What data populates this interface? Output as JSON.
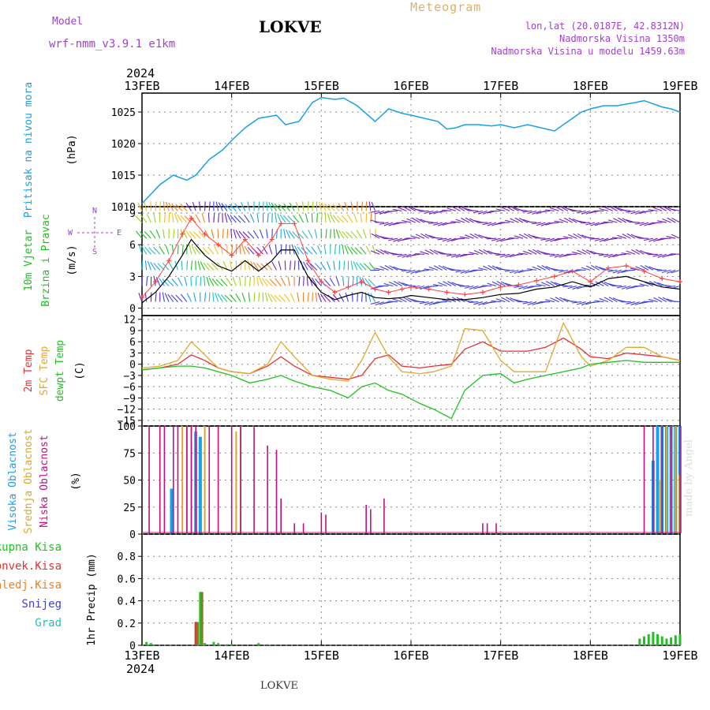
{
  "header": {
    "title": "LOKVE",
    "model_label": "Model",
    "model_name": "wrf-nmm_v3.9.1 e1km",
    "meteogram_label": "Meteogram",
    "lonlat": "lon,lat (20.0187E, 42.8312N)",
    "elevation": "Nadmorska Visina 1350m",
    "elevation_model": "Nadmorska Visina u modelu 1459.63m"
  },
  "footer": {
    "title": "LOKVE",
    "signature": "made by Angel"
  },
  "time_axis": {
    "year": "2024",
    "ticks": [
      "13FEB",
      "14FEB",
      "15FEB",
      "16FEB",
      "17FEB",
      "18FEB",
      "19FEB"
    ]
  },
  "colors": {
    "pressure": "#1aa0e8",
    "temp2m": "#e83030",
    "sfctemp": "#e0a830",
    "dewpt": "#20c020",
    "high_cloud": "#1aa0e8",
    "mid_cloud": "#d8a830",
    "low_cloud": "#c01080",
    "total_precip": "#20c020",
    "conv_precip": "#e83030",
    "freezing_precip": "#f08020",
    "snow": "#4040e0",
    "graupel": "#20c0c0",
    "gust": "#ff4040",
    "wind_speed": "#000000"
  },
  "chart_data": [
    {
      "type": "line",
      "panel": "pressure",
      "ylabel_left": "Pritisak na nivou mora",
      "ylabel_unit": "(hPa)",
      "ylim": [
        1010,
        1028
      ],
      "yticks": [
        "1010",
        "1015",
        "1020",
        "1025"
      ],
      "x_days": [
        0,
        0.1,
        0.2,
        0.35,
        0.5,
        0.6,
        0.75,
        0.9,
        1.0,
        1.15,
        1.3,
        1.5,
        1.6,
        1.75,
        1.9,
        2.0,
        2.15,
        2.25,
        2.4,
        2.6,
        2.75,
        2.9,
        3.0,
        3.15,
        3.3,
        3.4,
        3.5,
        3.6,
        3.75,
        3.9,
        4.0,
        4.15,
        4.3,
        4.45,
        4.6,
        4.75,
        4.9,
        5.0,
        5.15,
        5.3,
        5.5,
        5.6,
        5.8,
        5.9,
        6.0
      ],
      "series": [
        {
          "values": [
            1010.5,
            1012,
            1013.5,
            1015,
            1014.2,
            1015,
            1017.5,
            1019,
            1020.5,
            1022.5,
            1024,
            1024.5,
            1023,
            1023.5,
            1026.5,
            1027.3,
            1027,
            1027.2,
            1026,
            1023.5,
            1025.5,
            1024.8,
            1024.5,
            1024,
            1023.5,
            1022.3,
            1022.5,
            1023,
            1023,
            1022.8,
            1023,
            1022.5,
            1023,
            1022.5,
            1022,
            1023.5,
            1025,
            1025.5,
            1026,
            1026,
            1026.5,
            1026.8,
            1025.8,
            1025.5,
            1025
          ]
        }
      ]
    },
    {
      "type": "line",
      "panel": "wind",
      "ylabel_left_1": "10m Vjetar",
      "ylabel_left_2": "Brzina i Pravac",
      "ylabel_unit": "(m/s)",
      "compass": {
        "n": "N",
        "s": "S",
        "w": "W",
        "e": "E"
      },
      "ylim": [
        -0.7,
        9.6
      ],
      "yticks": [
        "0",
        "3",
        "6",
        "9"
      ],
      "x_days": [
        0,
        0.15,
        0.3,
        0.45,
        0.55,
        0.7,
        0.85,
        1.0,
        1.15,
        1.3,
        1.45,
        1.55,
        1.7,
        1.85,
        2.0,
        2.15,
        2.3,
        2.45,
        2.6,
        2.75,
        2.9,
        3.0,
        3.2,
        3.4,
        3.6,
        3.8,
        4.0,
        4.2,
        4.4,
        4.6,
        4.8,
        5.0,
        5.2,
        5.4,
        5.6,
        5.8,
        6.0
      ],
      "series": [
        {
          "name": "speed",
          "values": [
            0.5,
            1.5,
            3,
            5,
            6.5,
            5,
            4,
            3.5,
            4.5,
            3.5,
            4.5,
            5.5,
            5.5,
            3,
            1.5,
            0.8,
            1.2,
            1.5,
            1.0,
            0.9,
            1.0,
            1.2,
            1.0,
            0.8,
            0.8,
            1.0,
            1.3,
            1.4,
            1.8,
            2.0,
            2.5,
            2.0,
            2.8,
            3.0,
            2.5,
            2.0,
            1.8
          ]
        },
        {
          "name": "gust",
          "values": [
            1,
            2.5,
            4.5,
            7,
            8.5,
            7,
            6,
            5,
            6.5,
            5,
            6.5,
            8,
            8,
            4.5,
            2.5,
            1.5,
            2,
            2.5,
            1.8,
            1.5,
            1.8,
            2,
            1.8,
            1.5,
            1.3,
            1.5,
            2,
            2.2,
            2.6,
            3,
            3.5,
            2.5,
            3.8,
            4,
            3.5,
            2.8,
            2.5
          ]
        }
      ]
    },
    {
      "type": "line",
      "panel": "temperature",
      "ylabel_left_1": "2m Temp",
      "ylabel_left_2": "SFC Temp",
      "ylabel_left_3": "dewpt Temp",
      "ylabel_unit": "(C)",
      "ylim": [
        -16.5,
        13
      ],
      "yticks": [
        "12",
        "9",
        "6",
        "3",
        "0",
        "−3",
        "−6",
        "−9",
        "−12",
        "−15"
      ],
      "x_days": [
        0,
        0.2,
        0.4,
        0.55,
        0.7,
        0.85,
        1.0,
        1.2,
        1.4,
        1.55,
        1.7,
        1.9,
        2.1,
        2.3,
        2.45,
        2.6,
        2.75,
        2.9,
        3.1,
        3.25,
        3.45,
        3.6,
        3.8,
        4.0,
        4.15,
        4.3,
        4.5,
        4.7,
        4.9,
        5.0,
        5.2,
        5.4,
        5.6,
        5.8,
        6.0
      ],
      "series": [
        {
          "name": "2m Temp",
          "values": [
            -1.5,
            -1,
            0,
            2.5,
            1,
            -1,
            -2,
            -2.5,
            -0.5,
            2,
            -0.5,
            -3,
            -3.5,
            -4,
            -3,
            1.5,
            2.5,
            -0.5,
            -1,
            -0.5,
            0,
            4,
            6,
            3.5,
            3.5,
            3.5,
            4.5,
            7,
            4,
            2,
            1.5,
            3,
            2.5,
            2,
            1
          ]
        },
        {
          "name": "SFC Temp",
          "values": [
            -1,
            -0.5,
            1,
            6,
            2.5,
            -1,
            -2,
            -2.5,
            0,
            6,
            2,
            -3,
            -4,
            -4.5,
            1,
            8.5,
            2,
            -2,
            -2.5,
            -2,
            -0.5,
            9.5,
            9,
            1,
            -2,
            -2,
            -2,
            11,
            2,
            -0.5,
            1,
            4.5,
            4.5,
            2,
            1
          ]
        },
        {
          "name": "dewpt Temp",
          "values": [
            -1.5,
            -1,
            -0.5,
            -0.5,
            -1,
            -2,
            -3,
            -5,
            -4,
            -3,
            -4.5,
            -6,
            -7,
            -9,
            -6,
            -5,
            -7,
            -8,
            -10.5,
            -12,
            -14.5,
            -7,
            -3,
            -2.5,
            -5,
            -4,
            -3,
            -2,
            -1,
            0,
            0.5,
            1,
            0.5,
            0.5,
            0.5
          ]
        }
      ]
    },
    {
      "type": "bar",
      "panel": "cloud",
      "ylabel_left_1": "Visoka Oblacnost",
      "ylabel_left_2": "Srednja Oblacnost",
      "ylabel_left_3": "Niska Oblacnost",
      "ylabel_unit": "(%)",
      "ylim": [
        0,
        100
      ],
      "yticks": [
        "0",
        "25",
        "50",
        "75",
        "100"
      ],
      "series": [
        {
          "name": "high",
          "x_days": [
            0.33,
            0.6,
            0.65,
            5.7,
            5.75,
            5.8,
            5.85,
            5.9,
            5.95,
            6.0
          ],
          "values": [
            42,
            95,
            90,
            68,
            100,
            100,
            100,
            100,
            100,
            100
          ]
        },
        {
          "name": "mid",
          "x_days": [
            0.45,
            0.5,
            0.55,
            0.6,
            0.7,
            1.05,
            1.1,
            5.78,
            5.85,
            5.9,
            5.95,
            6.1,
            6.3,
            6.5,
            6.7,
            6.9,
            5.99
          ],
          "values": [
            100,
            100,
            100,
            95,
            100,
            95,
            100,
            50,
            100,
            90,
            100,
            100,
            100,
            100,
            100,
            100,
            55
          ]
        },
        {
          "name": "low",
          "x_days": [
            0.08,
            0.2,
            0.25,
            0.35,
            0.4,
            0.5,
            0.55,
            0.6,
            0.75,
            0.85,
            1.0,
            1.1,
            1.25,
            1.4,
            1.5,
            1.55,
            1.7,
            1.8,
            2.0,
            2.05,
            2.5,
            2.55,
            2.7,
            3.8,
            3.85,
            3.95,
            5.6,
            5.7,
            5.8,
            5.9,
            6.0
          ],
          "values": [
            100,
            100,
            100,
            100,
            100,
            100,
            100,
            100,
            100,
            100,
            100,
            100,
            100,
            82,
            78,
            33,
            10,
            10,
            20,
            18,
            27,
            23,
            33,
            10,
            10,
            10,
            100,
            100,
            100,
            100,
            100
          ]
        }
      ]
    },
    {
      "type": "bar",
      "panel": "precipitation",
      "ylabel_left_1": "Ukupna Kisa",
      "ylabel_left_2": "Konvek.Kisa",
      "ylabel_left_3": "Zaledj.Kisa",
      "ylabel_left_4": "Snijeg",
      "ylabel_left_5": "Grad",
      "ylabel_unit": "1hr Precip (mm)",
      "ylim": [
        0,
        1.0
      ],
      "yticks": [
        "0",
        "0.2",
        "0.4",
        "0.6",
        "0.8"
      ],
      "series": [
        {
          "name": "total",
          "x_days": [
            0.05,
            0.1,
            0.6,
            0.65,
            0.7,
            0.8,
            0.85,
            0.95,
            1.0,
            1.3,
            1.4,
            5.55,
            5.6,
            5.65,
            5.7,
            5.75,
            5.8,
            5.85,
            5.9,
            5.95,
            6.0
          ],
          "values": [
            0.03,
            0.02,
            0.21,
            0.48,
            0.02,
            0.03,
            0.02,
            0.01,
            0.01,
            0.02,
            0.01,
            0.06,
            0.08,
            0.1,
            0.12,
            0.1,
            0.08,
            0.06,
            0.07,
            0.09,
            0.1
          ]
        },
        {
          "name": "convective",
          "x_days": [
            0.6
          ],
          "values": [
            0.21
          ]
        },
        {
          "name": "snow",
          "x_days": [
            0.62,
            0.67
          ],
          "values": [
            0.21,
            0.48
          ]
        }
      ]
    }
  ]
}
